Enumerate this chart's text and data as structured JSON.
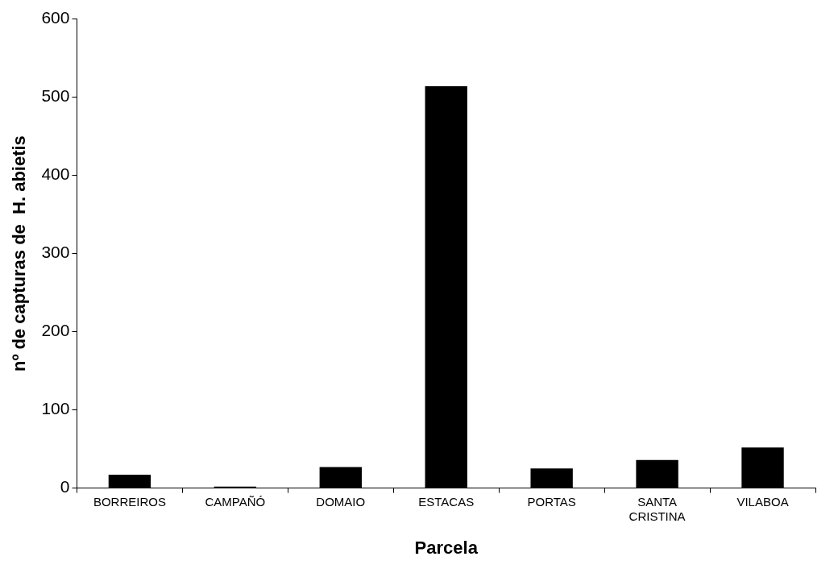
{
  "chart_data": {
    "type": "bar",
    "xlabel": "Parcela",
    "ylabel": "nº de capturas de  H. abietis",
    "categories": [
      "BORREIROS",
      "CAMPAÑÓ",
      "DOMAIO",
      "ESTACAS",
      "PORTAS",
      "SANTA CRISTINA",
      "VILABOA"
    ],
    "values": [
      17,
      2,
      27,
      514,
      25,
      36,
      52
    ],
    "color": "#000000",
    "ylim": [
      0,
      600
    ],
    "yticks": [
      0,
      100,
      200,
      300,
      400,
      500,
      600
    ],
    "grid": false,
    "legend": false
  }
}
